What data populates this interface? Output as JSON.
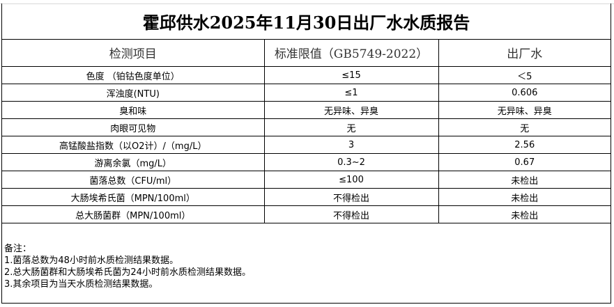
{
  "title": "霍邱供水2025年11月30日出厂水水质报告",
  "columns": [
    "检测项目",
    "标准限值（GB5749-2022）",
    "出厂水"
  ],
  "rows": [
    [
      "色度 （铂钴色度单位）",
      "≤15",
      "＜5"
    ],
    [
      "浑浊度(NTU)",
      "≤1",
      "0.606"
    ],
    [
      "臭和味",
      "无异味、异臭",
      "无异味、异臭"
    ],
    [
      "肉眼可见物",
      "无",
      "无"
    ],
    [
      "高锰酸盐指数（以O2计）/（mg/L）",
      "3",
      "2.56"
    ],
    [
      "游离余氯（mg/L）",
      "0.3~2",
      "0.67"
    ],
    [
      "菌落总数（CFU/ml）",
      "≤100",
      "未检出"
    ],
    [
      "大肠埃希氏菌（MPN/100ml）",
      "不得检出",
      "未检出"
    ],
    [
      "总大肠菌群（MPN/100ml）",
      "不得检出",
      "未检出"
    ]
  ],
  "notes": {
    "heading": "备注：",
    "items": [
      "1.菌落总数为48小时前水质检测结果数据。",
      "2.总大肠菌群和大肠埃希氏菌为24小时前水质检测结果数据。",
      "3.其余项目为当天水质检测结果数据。"
    ]
  }
}
